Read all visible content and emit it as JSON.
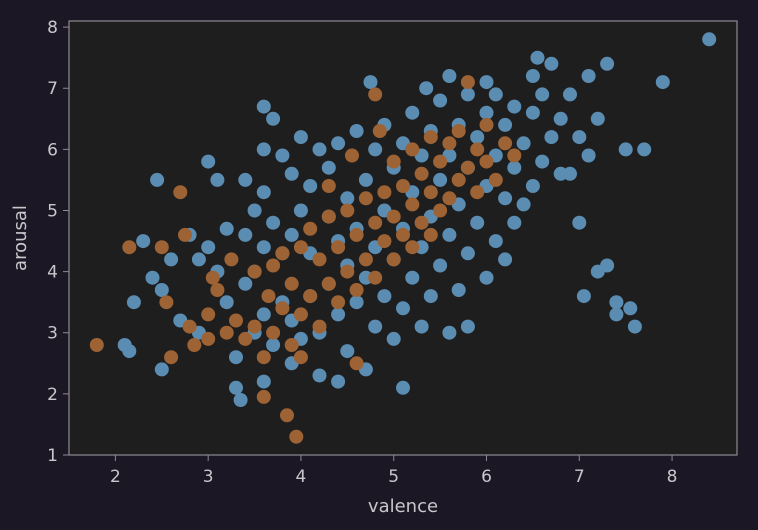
{
  "chart_data": {
    "type": "scatter",
    "title": "",
    "xlabel": "valence",
    "ylabel": "arousal",
    "xlim": [
      1.5,
      8.7
    ],
    "ylim": [
      1,
      8.1
    ],
    "xticks": [
      2,
      3,
      4,
      5,
      6,
      7,
      8
    ],
    "yticks": [
      1,
      2,
      3,
      4,
      5,
      6,
      7,
      8
    ],
    "grid": false,
    "legend": "none",
    "colors": {
      "figure_background": "#1c1724",
      "plot_background": "#1e1e1e",
      "frame": "#8e8a93",
      "text": "#c9c6cc"
    },
    "series": [
      {
        "color": "#5b8db3",
        "points": [
          [
            2.1,
            2.8
          ],
          [
            2.15,
            2.7
          ],
          [
            2.2,
            3.5
          ],
          [
            2.3,
            4.5
          ],
          [
            2.4,
            3.9
          ],
          [
            2.45,
            5.5
          ],
          [
            2.5,
            3.7
          ],
          [
            2.5,
            2.4
          ],
          [
            2.6,
            4.2
          ],
          [
            2.7,
            3.2
          ],
          [
            2.8,
            4.6
          ],
          [
            2.9,
            3.0
          ],
          [
            2.9,
            4.2
          ],
          [
            3.0,
            4.4
          ],
          [
            3.0,
            5.8
          ],
          [
            3.1,
            4.0
          ],
          [
            3.1,
            5.5
          ],
          [
            3.2,
            3.5
          ],
          [
            3.2,
            4.7
          ],
          [
            3.3,
            2.6
          ],
          [
            3.3,
            2.1
          ],
          [
            3.35,
            1.9
          ],
          [
            3.4,
            3.8
          ],
          [
            3.4,
            4.6
          ],
          [
            3.4,
            5.5
          ],
          [
            3.5,
            3.0
          ],
          [
            3.5,
            4.0
          ],
          [
            3.5,
            5.0
          ],
          [
            3.6,
            2.2
          ],
          [
            3.6,
            3.3
          ],
          [
            3.6,
            4.4
          ],
          [
            3.6,
            5.3
          ],
          [
            3.6,
            6.0
          ],
          [
            3.6,
            6.7
          ],
          [
            3.7,
            2.8
          ],
          [
            3.7,
            4.8
          ],
          [
            3.7,
            6.5
          ],
          [
            3.8,
            3.5
          ],
          [
            3.8,
            4.3
          ],
          [
            3.8,
            5.9
          ],
          [
            3.9,
            2.5
          ],
          [
            3.9,
            3.2
          ],
          [
            3.9,
            4.6
          ],
          [
            3.9,
            5.6
          ],
          [
            4.0,
            2.9
          ],
          [
            4.0,
            5.0
          ],
          [
            4.0,
            6.2
          ],
          [
            4.1,
            3.6
          ],
          [
            4.1,
            4.3
          ],
          [
            4.1,
            5.4
          ],
          [
            4.2,
            2.3
          ],
          [
            4.2,
            3.0
          ],
          [
            4.2,
            6.0
          ],
          [
            4.3,
            3.8
          ],
          [
            4.3,
            4.9
          ],
          [
            4.3,
            5.7
          ],
          [
            4.4,
            2.2
          ],
          [
            4.4,
            3.3
          ],
          [
            4.4,
            4.5
          ],
          [
            4.4,
            6.1
          ],
          [
            4.5,
            2.7
          ],
          [
            4.5,
            4.1
          ],
          [
            4.5,
            5.2
          ],
          [
            4.6,
            3.5
          ],
          [
            4.6,
            4.7
          ],
          [
            4.6,
            6.3
          ],
          [
            4.7,
            2.4
          ],
          [
            4.7,
            3.9
          ],
          [
            4.7,
            5.5
          ],
          [
            4.75,
            7.1
          ],
          [
            4.8,
            3.1
          ],
          [
            4.8,
            4.4
          ],
          [
            4.8,
            6.0
          ],
          [
            4.9,
            3.6
          ],
          [
            4.9,
            5.0
          ],
          [
            4.9,
            6.4
          ],
          [
            5.0,
            2.9
          ],
          [
            5.0,
            4.2
          ],
          [
            5.0,
            5.7
          ],
          [
            5.1,
            2.1
          ],
          [
            5.1,
            3.4
          ],
          [
            5.1,
            4.7
          ],
          [
            5.1,
            6.1
          ],
          [
            5.2,
            3.9
          ],
          [
            5.2,
            5.3
          ],
          [
            5.2,
            6.6
          ],
          [
            5.3,
            3.1
          ],
          [
            5.3,
            4.4
          ],
          [
            5.3,
            5.9
          ],
          [
            5.35,
            7.0
          ],
          [
            5.4,
            3.6
          ],
          [
            5.4,
            4.9
          ],
          [
            5.4,
            6.3
          ],
          [
            5.5,
            4.1
          ],
          [
            5.5,
            5.5
          ],
          [
            5.5,
            6.8
          ],
          [
            5.6,
            3.0
          ],
          [
            5.6,
            4.6
          ],
          [
            5.6,
            5.9
          ],
          [
            5.6,
            7.2
          ],
          [
            5.7,
            3.7
          ],
          [
            5.7,
            5.1
          ],
          [
            5.7,
            6.4
          ],
          [
            5.8,
            3.1
          ],
          [
            5.8,
            4.3
          ],
          [
            5.8,
            5.7
          ],
          [
            5.8,
            6.9
          ],
          [
            5.9,
            4.8
          ],
          [
            5.9,
            6.2
          ],
          [
            6.0,
            3.9
          ],
          [
            6.0,
            5.4
          ],
          [
            6.0,
            6.6
          ],
          [
            6.0,
            7.1
          ],
          [
            6.1,
            4.5
          ],
          [
            6.1,
            5.9
          ],
          [
            6.1,
            6.9
          ],
          [
            6.2,
            4.2
          ],
          [
            6.2,
            5.2
          ],
          [
            6.2,
            6.4
          ],
          [
            6.3,
            4.8
          ],
          [
            6.3,
            5.7
          ],
          [
            6.3,
            6.7
          ],
          [
            6.4,
            5.1
          ],
          [
            6.4,
            6.1
          ],
          [
            6.5,
            5.4
          ],
          [
            6.5,
            6.6
          ],
          [
            6.5,
            7.2
          ],
          [
            6.55,
            7.5
          ],
          [
            6.6,
            5.8
          ],
          [
            6.6,
            6.9
          ],
          [
            6.7,
            6.2
          ],
          [
            6.7,
            7.4
          ],
          [
            6.8,
            5.6
          ],
          [
            6.8,
            6.5
          ],
          [
            6.9,
            5.6
          ],
          [
            6.9,
            6.9
          ],
          [
            7.0,
            4.8
          ],
          [
            7.0,
            6.2
          ],
          [
            7.05,
            3.6
          ],
          [
            7.1,
            5.9
          ],
          [
            7.1,
            7.2
          ],
          [
            7.2,
            4.0
          ],
          [
            7.2,
            6.5
          ],
          [
            7.3,
            4.1
          ],
          [
            7.3,
            7.4
          ],
          [
            7.4,
            3.5
          ],
          [
            7.4,
            3.3
          ],
          [
            7.5,
            6.0
          ],
          [
            7.55,
            3.4
          ],
          [
            7.6,
            3.1
          ],
          [
            7.7,
            6.0
          ],
          [
            7.9,
            7.1
          ],
          [
            8.4,
            7.8
          ]
        ]
      },
      {
        "color": "#9e6334",
        "points": [
          [
            1.8,
            2.8
          ],
          [
            2.15,
            4.4
          ],
          [
            2.5,
            4.4
          ],
          [
            2.55,
            3.5
          ],
          [
            2.6,
            2.6
          ],
          [
            2.7,
            5.3
          ],
          [
            2.75,
            4.6
          ],
          [
            2.8,
            3.1
          ],
          [
            2.85,
            2.8
          ],
          [
            3.0,
            3.3
          ],
          [
            3.0,
            2.9
          ],
          [
            3.05,
            3.9
          ],
          [
            3.1,
            3.7
          ],
          [
            3.2,
            3.0
          ],
          [
            3.25,
            4.2
          ],
          [
            3.3,
            3.2
          ],
          [
            3.4,
            2.9
          ],
          [
            3.5,
            3.1
          ],
          [
            3.5,
            4.0
          ],
          [
            3.6,
            1.95
          ],
          [
            3.6,
            2.6
          ],
          [
            3.65,
            3.6
          ],
          [
            3.7,
            4.1
          ],
          [
            3.7,
            3.0
          ],
          [
            3.8,
            3.4
          ],
          [
            3.8,
            4.3
          ],
          [
            3.85,
            1.65
          ],
          [
            3.9,
            2.8
          ],
          [
            3.9,
            3.8
          ],
          [
            3.95,
            1.3
          ],
          [
            4.0,
            3.3
          ],
          [
            4.0,
            4.4
          ],
          [
            4.0,
            2.6
          ],
          [
            4.1,
            3.6
          ],
          [
            4.1,
            4.7
          ],
          [
            4.2,
            3.1
          ],
          [
            4.2,
            4.2
          ],
          [
            4.3,
            3.8
          ],
          [
            4.3,
            4.9
          ],
          [
            4.3,
            5.4
          ],
          [
            4.4,
            3.5
          ],
          [
            4.4,
            4.4
          ],
          [
            4.5,
            4.0
          ],
          [
            4.5,
            5.0
          ],
          [
            4.55,
            5.9
          ],
          [
            4.6,
            2.5
          ],
          [
            4.6,
            3.7
          ],
          [
            4.6,
            4.6
          ],
          [
            4.7,
            4.2
          ],
          [
            4.7,
            5.2
          ],
          [
            4.8,
            6.9
          ],
          [
            4.8,
            3.9
          ],
          [
            4.8,
            4.8
          ],
          [
            4.85,
            6.3
          ],
          [
            4.9,
            4.5
          ],
          [
            4.9,
            5.3
          ],
          [
            5.0,
            4.2
          ],
          [
            5.0,
            4.9
          ],
          [
            5.0,
            5.8
          ],
          [
            5.1,
            4.6
          ],
          [
            5.1,
            5.4
          ],
          [
            5.2,
            4.4
          ],
          [
            5.2,
            5.1
          ],
          [
            5.2,
            6.0
          ],
          [
            5.3,
            4.8
          ],
          [
            5.3,
            5.6
          ],
          [
            5.4,
            4.6
          ],
          [
            5.4,
            5.3
          ],
          [
            5.4,
            6.2
          ],
          [
            5.5,
            5.0
          ],
          [
            5.5,
            5.8
          ],
          [
            5.6,
            5.2
          ],
          [
            5.6,
            6.1
          ],
          [
            5.7,
            5.5
          ],
          [
            5.7,
            6.3
          ],
          [
            5.8,
            5.7
          ],
          [
            5.8,
            7.1
          ],
          [
            5.9,
            5.3
          ],
          [
            5.9,
            6.0
          ],
          [
            6.0,
            5.8
          ],
          [
            6.0,
            6.4
          ],
          [
            6.1,
            5.5
          ],
          [
            6.2,
            6.1
          ],
          [
            6.3,
            5.9
          ]
        ]
      }
    ]
  }
}
